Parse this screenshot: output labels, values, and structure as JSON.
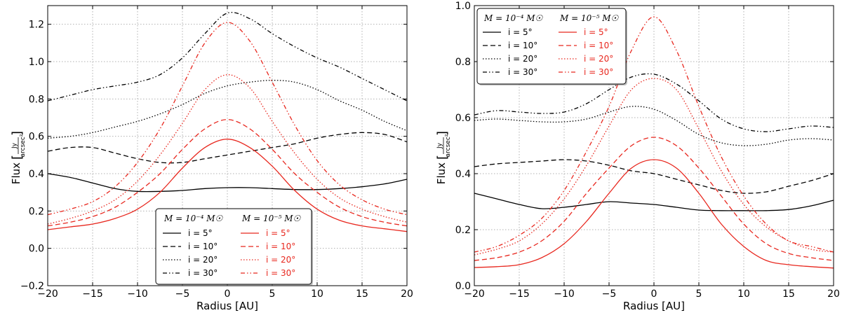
{
  "chart_data": [
    {
      "type": "line",
      "xlabel": "Radius [AU]",
      "ylabel": "Flux",
      "ylabel_unit_num": "Jy",
      "ylabel_unit_den": "arcsec²",
      "xlim": [
        -20,
        20
      ],
      "ylim": [
        -0.2,
        1.3
      ],
      "xticks": [
        -20,
        -15,
        -10,
        -5,
        0,
        5,
        10,
        15,
        20
      ],
      "yticks": [
        -0.2,
        0.0,
        0.2,
        0.4,
        0.6,
        0.8,
        1.0,
        1.2
      ],
      "ytick_labels": [
        "−0.2",
        "0.0",
        "0.2",
        "0.4",
        "0.6",
        "0.8",
        "1.0",
        "1.2"
      ],
      "xtick_labels": [
        "−20",
        "−15",
        "−10",
        "−5",
        "0",
        "5",
        "10",
        "15",
        "20"
      ],
      "grid": true,
      "legend_position": "bottom-center",
      "legend_headers": [
        "M = 10⁻⁴ M☉",
        "M = 10⁻⁵ M☉"
      ],
      "x": [
        -20,
        -17.5,
        -15,
        -12.5,
        -10,
        -7.5,
        -5,
        -2.5,
        0,
        2.5,
        5,
        7.5,
        10,
        12.5,
        15,
        17.5,
        20
      ],
      "series": [
        {
          "name": "i = 5°",
          "group": 0,
          "color": "#000000",
          "dash": "solid",
          "values": [
            0.4,
            0.38,
            0.35,
            0.32,
            0.305,
            0.305,
            0.31,
            0.32,
            0.325,
            0.325,
            0.32,
            0.315,
            0.315,
            0.32,
            0.33,
            0.345,
            0.37
          ]
        },
        {
          "name": "i = 10°",
          "group": 0,
          "color": "#000000",
          "dash": "dashed",
          "values": [
            0.52,
            0.54,
            0.54,
            0.51,
            0.48,
            0.46,
            0.46,
            0.48,
            0.5,
            0.52,
            0.54,
            0.56,
            0.59,
            0.61,
            0.62,
            0.61,
            0.57
          ]
        },
        {
          "name": "i = 20°",
          "group": 0,
          "color": "#000000",
          "dash": "dotted",
          "values": [
            0.59,
            0.6,
            0.62,
            0.65,
            0.68,
            0.72,
            0.77,
            0.83,
            0.87,
            0.89,
            0.9,
            0.89,
            0.85,
            0.79,
            0.74,
            0.68,
            0.63
          ]
        },
        {
          "name": "i = 30°",
          "group": 0,
          "color": "#000000",
          "dash": "dashdotdot",
          "values": [
            0.79,
            0.82,
            0.85,
            0.87,
            0.89,
            0.93,
            1.02,
            1.15,
            1.26,
            1.23,
            1.15,
            1.08,
            1.02,
            0.97,
            0.91,
            0.85,
            0.79
          ]
        },
        {
          "name": "i = 5°",
          "group": 1,
          "color": "#e8271e",
          "dash": "solid",
          "values": [
            0.1,
            0.115,
            0.13,
            0.16,
            0.21,
            0.3,
            0.43,
            0.54,
            0.585,
            0.54,
            0.44,
            0.31,
            0.21,
            0.15,
            0.12,
            0.105,
            0.09
          ]
        },
        {
          "name": "i = 10°",
          "group": 1,
          "color": "#e8271e",
          "dash": "dashed",
          "values": [
            0.12,
            0.14,
            0.17,
            0.22,
            0.3,
            0.4,
            0.53,
            0.64,
            0.69,
            0.64,
            0.53,
            0.4,
            0.3,
            0.22,
            0.17,
            0.14,
            0.12
          ]
        },
        {
          "name": "i = 20°",
          "group": 1,
          "color": "#e8271e",
          "dash": "dotted",
          "values": [
            0.13,
            0.16,
            0.2,
            0.26,
            0.36,
            0.5,
            0.67,
            0.85,
            0.93,
            0.86,
            0.68,
            0.51,
            0.37,
            0.27,
            0.21,
            0.17,
            0.14
          ]
        },
        {
          "name": "i = 30°",
          "group": 1,
          "color": "#e8271e",
          "dash": "dashdotdot",
          "values": [
            0.18,
            0.21,
            0.25,
            0.33,
            0.46,
            0.64,
            0.87,
            1.1,
            1.21,
            1.11,
            0.89,
            0.66,
            0.47,
            0.34,
            0.26,
            0.21,
            0.18
          ]
        }
      ]
    },
    {
      "type": "line",
      "xlabel": "Radius [AU]",
      "ylabel": "Flux",
      "ylabel_unit_num": "Jy",
      "ylabel_unit_den": "arcsec²",
      "xlim": [
        -20,
        20
      ],
      "ylim": [
        0.0,
        1.0
      ],
      "xticks": [
        -20,
        -15,
        -10,
        -5,
        0,
        5,
        10,
        15,
        20
      ],
      "yticks": [
        0.0,
        0.2,
        0.4,
        0.6,
        0.8,
        1.0
      ],
      "ytick_labels": [
        "0.0",
        "0.2",
        "0.4",
        "0.6",
        "0.8",
        "1.0"
      ],
      "xtick_labels": [
        "−20",
        "−15",
        "−10",
        "−5",
        "0",
        "5",
        "10",
        "15",
        "20"
      ],
      "grid": true,
      "legend_position": "top-left",
      "legend_headers": [
        "M = 10⁻⁴ M☉",
        "M = 10⁻⁵ M☉"
      ],
      "x": [
        -20,
        -17.5,
        -15,
        -12.5,
        -10,
        -7.5,
        -5,
        -2.5,
        0,
        2.5,
        5,
        7.5,
        10,
        12.5,
        15,
        17.5,
        20
      ],
      "series": [
        {
          "name": "i = 5°",
          "group": 0,
          "color": "#000000",
          "dash": "solid",
          "values": [
            0.33,
            0.31,
            0.29,
            0.275,
            0.28,
            0.29,
            0.3,
            0.295,
            0.29,
            0.28,
            0.27,
            0.268,
            0.268,
            0.268,
            0.272,
            0.285,
            0.305
          ]
        },
        {
          "name": "i = 10°",
          "group": 0,
          "color": "#000000",
          "dash": "dashed",
          "values": [
            0.425,
            0.435,
            0.44,
            0.445,
            0.45,
            0.445,
            0.43,
            0.41,
            0.4,
            0.38,
            0.36,
            0.34,
            0.33,
            0.335,
            0.355,
            0.375,
            0.4
          ]
        },
        {
          "name": "i = 20°",
          "group": 0,
          "color": "#000000",
          "dash": "dotted",
          "values": [
            0.59,
            0.595,
            0.59,
            0.585,
            0.585,
            0.595,
            0.62,
            0.64,
            0.63,
            0.59,
            0.54,
            0.51,
            0.5,
            0.505,
            0.52,
            0.525,
            0.52
          ]
        },
        {
          "name": "i = 30°",
          "group": 0,
          "color": "#000000",
          "dash": "dashdotdot",
          "values": [
            0.61,
            0.625,
            0.62,
            0.615,
            0.62,
            0.65,
            0.7,
            0.745,
            0.755,
            0.72,
            0.66,
            0.595,
            0.56,
            0.55,
            0.56,
            0.57,
            0.565
          ]
        },
        {
          "name": "i = 5°",
          "group": 1,
          "color": "#e8271e",
          "dash": "solid",
          "values": [
            0.065,
            0.068,
            0.075,
            0.1,
            0.15,
            0.23,
            0.33,
            0.42,
            0.45,
            0.42,
            0.33,
            0.22,
            0.14,
            0.09,
            0.075,
            0.068,
            0.063
          ]
        },
        {
          "name": "i = 10°",
          "group": 1,
          "color": "#e8271e",
          "dash": "dashed",
          "values": [
            0.09,
            0.1,
            0.12,
            0.16,
            0.23,
            0.33,
            0.42,
            0.5,
            0.53,
            0.5,
            0.42,
            0.32,
            0.22,
            0.15,
            0.115,
            0.1,
            0.09
          ]
        },
        {
          "name": "i = 20°",
          "group": 1,
          "color": "#e8271e",
          "dash": "dotted",
          "values": [
            0.11,
            0.13,
            0.16,
            0.22,
            0.31,
            0.43,
            0.57,
            0.7,
            0.74,
            0.7,
            0.56,
            0.41,
            0.29,
            0.21,
            0.16,
            0.13,
            0.12
          ]
        },
        {
          "name": "i = 30°",
          "group": 1,
          "color": "#e8271e",
          "dash": "dashdotdot",
          "values": [
            0.12,
            0.14,
            0.18,
            0.24,
            0.34,
            0.48,
            0.64,
            0.84,
            0.96,
            0.84,
            0.64,
            0.46,
            0.32,
            0.22,
            0.16,
            0.14,
            0.12
          ]
        }
      ]
    }
  ]
}
